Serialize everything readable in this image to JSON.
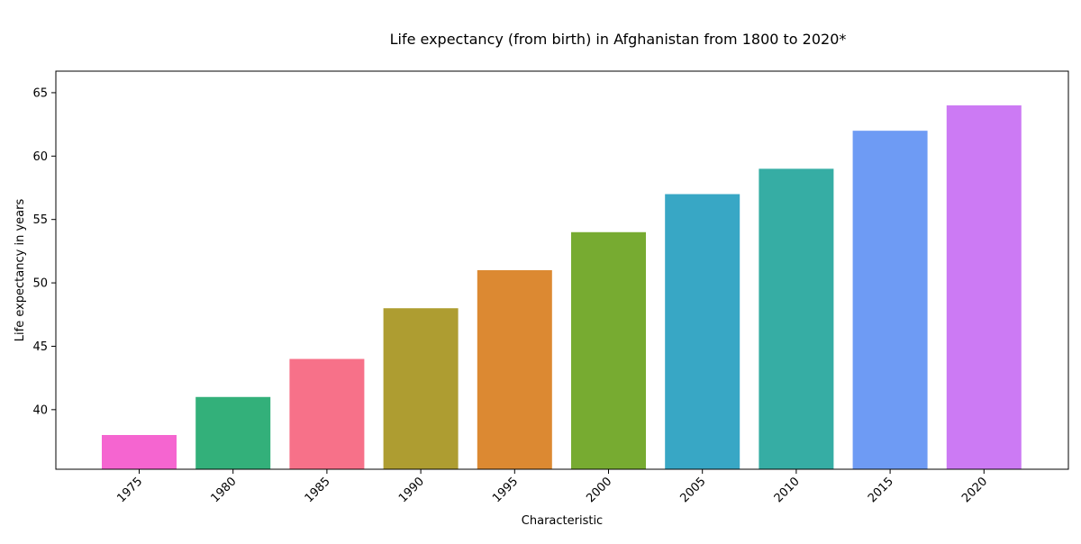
{
  "chart_data": {
    "type": "bar",
    "title": "Life expectancy (from birth) in Afghanistan  from 1800 to 2020*",
    "xlabel": "Characteristic",
    "ylabel": "Life expectancy in years",
    "categories": [
      "1975",
      "1980",
      "1985",
      "1990",
      "1995",
      "2000",
      "2005",
      "2010",
      "2015",
      "2020"
    ],
    "values": [
      38,
      41,
      44,
      48,
      51,
      54,
      57,
      59,
      62,
      64
    ],
    "colors": [
      "#f565d0",
      "#33b07a",
      "#f77189",
      "#ae9d31",
      "#dc8932",
      "#77ab31",
      "#38a7c5",
      "#36ada4",
      "#6e9bf4",
      "#cc7af4"
    ],
    "ylim": [
      35.3,
      66.7
    ],
    "yticks": [
      40,
      45,
      50,
      55,
      60,
      65
    ],
    "grid": false,
    "legend": "none"
  }
}
